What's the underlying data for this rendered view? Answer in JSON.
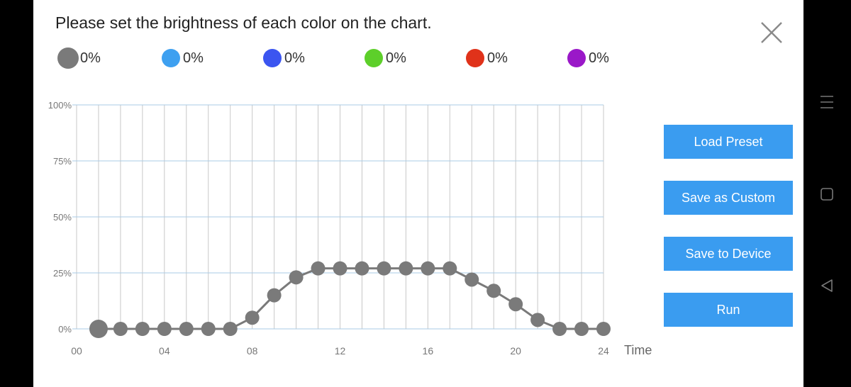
{
  "header": {
    "title": "Please set the brightness of each color on the chart."
  },
  "legend": [
    {
      "color": "#7a7a7a",
      "value": "0%"
    },
    {
      "color": "#3ea0f0",
      "value": "0%"
    },
    {
      "color": "#3b55f0",
      "value": "0%"
    },
    {
      "color": "#5dcf2a",
      "value": "0%"
    },
    {
      "color": "#e0321a",
      "value": "0%"
    },
    {
      "color": "#9a18c8",
      "value": "0%"
    }
  ],
  "buttons": {
    "load_preset": "Load Preset",
    "save_custom": "Save as Custom",
    "save_device": "Save to Device",
    "run": "Run"
  },
  "icons": {
    "close": "close-icon",
    "menu": "menu-icon",
    "home": "home-icon",
    "back": "back-icon"
  },
  "chart_data": {
    "type": "line",
    "xlabel": "Time",
    "ylabel": "",
    "xlim": [
      0,
      24
    ],
    "ylim": [
      0,
      100
    ],
    "x_ticks": [
      "00",
      "04",
      "08",
      "12",
      "16",
      "20",
      "24"
    ],
    "y_ticks": [
      "0%",
      "25%",
      "50%",
      "75%",
      "100%"
    ],
    "grid": true,
    "series": [
      {
        "color": "#7a7a7a",
        "x": [
          1,
          2,
          3,
          4,
          5,
          6,
          7,
          8,
          9,
          10,
          11,
          12,
          13,
          14,
          15,
          16,
          17,
          18,
          19,
          20,
          21,
          22,
          23,
          24
        ],
        "values": [
          0,
          0,
          0,
          0,
          0,
          0,
          0,
          5,
          15,
          23,
          27,
          27,
          27,
          27,
          27,
          27,
          27,
          22,
          17,
          11,
          4,
          0,
          0,
          0
        ]
      }
    ]
  }
}
